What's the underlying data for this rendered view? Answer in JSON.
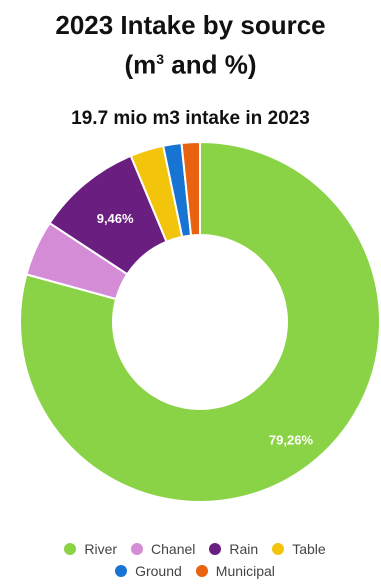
{
  "header": {
    "title_line1": "2023 Intake by source",
    "title_line2_pre": "(m",
    "title_line2_sup": "3",
    "title_line2_post": " and %)"
  },
  "chart_data": {
    "type": "pie",
    "title": "19.7 mio m3 intake in 2023",
    "donut": true,
    "categories": [
      "River",
      "Chanel",
      "Rain",
      "Table",
      "Ground",
      "Municipal"
    ],
    "values": [
      79.26,
      5.0,
      9.46,
      3.0,
      1.64,
      1.64
    ],
    "labels": [
      "79,26%",
      "",
      "9,46%",
      "",
      "",
      ""
    ],
    "colors": [
      "#8bd346",
      "#d58cd7",
      "#6a1f80",
      "#f2c40c",
      "#1874d2",
      "#e8620f"
    ],
    "legend_position": "bottom"
  }
}
